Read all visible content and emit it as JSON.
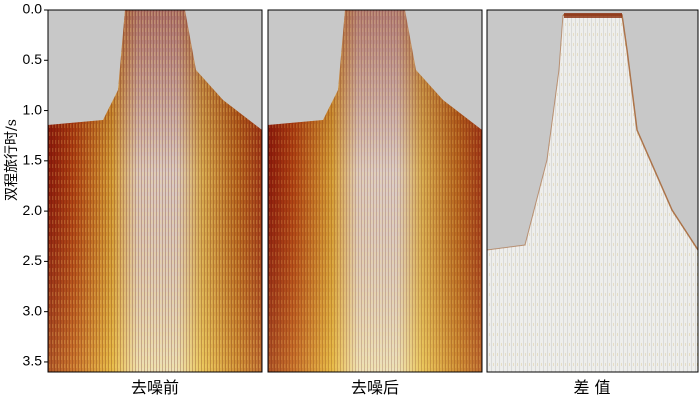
{
  "y_axis": {
    "label": "双程旅行时/s",
    "lim": [
      0,
      3.6
    ],
    "ticks": [
      {
        "value": 0,
        "label": "0.0"
      },
      {
        "value": 0.5,
        "label": "0.5"
      },
      {
        "value": 1,
        "label": "1.0"
      },
      {
        "value": 1.5,
        "label": "1.5"
      },
      {
        "value": 2,
        "label": "2.0"
      },
      {
        "value": 2.5,
        "label": "2.5"
      },
      {
        "value": 3,
        "label": "3.0"
      },
      {
        "value": 3.5,
        "label": "3.5"
      }
    ]
  },
  "panels": [
    {
      "title": "去噪前"
    },
    {
      "title": "去噪后"
    },
    {
      "title": "差 值"
    }
  ]
}
